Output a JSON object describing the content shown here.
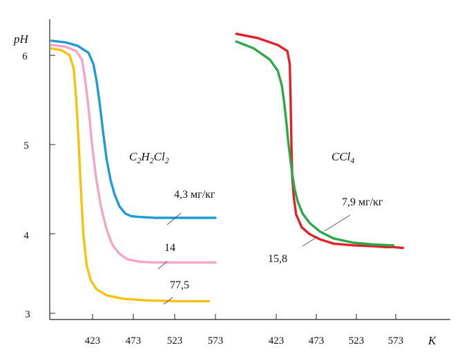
{
  "chart_data": {
    "type": "line",
    "ylabel": "pH",
    "xlabel": "K",
    "ylim": [
      3,
      6.3
    ],
    "y_ticks": [
      "3",
      "4",
      "5",
      "6"
    ],
    "x_ticks": [
      "423",
      "473",
      "523",
      "573"
    ],
    "panels": [
      {
        "title_parts": [
          {
            "t": "C",
            "sub": false
          },
          {
            "t": "2",
            "sub": true
          },
          {
            "t": "H",
            "sub": false
          },
          {
            "t": "2",
            "sub": true
          },
          {
            "t": "Cl",
            "sub": false
          },
          {
            "t": "2",
            "sub": true
          }
        ],
        "xlim": [
          373,
          573
        ],
        "series": [
          {
            "name": "4,3 мг/кг",
            "color": "#1e9bd7",
            "x": [
              373,
              390,
              405,
              418,
              424,
              428,
              432,
              436,
              440,
              445,
              450,
              456,
              463,
              470,
              480,
              500,
              530,
              573
            ],
            "y": [
              6.17,
              6.15,
              6.11,
              6.03,
              5.9,
              5.7,
              5.42,
              5.1,
              4.8,
              4.55,
              4.38,
              4.24,
              4.16,
              4.13,
              4.12,
              4.11,
              4.11,
              4.11
            ]
          },
          {
            "name": "14",
            "color": "#f5a3c7",
            "x": [
              373,
              390,
              403,
              410,
              414,
              418,
              422,
              427,
              433,
              440,
              447,
              455,
              465,
              480,
              500,
              530,
              573
            ],
            "y": [
              6.12,
              6.1,
              6.05,
              5.95,
              5.72,
              5.4,
              5.0,
              4.6,
              4.25,
              3.98,
              3.8,
              3.7,
              3.63,
              3.6,
              3.59,
              3.59,
              3.59
            ]
          },
          {
            "name": "77,5",
            "color": "#f5c210",
            "x": [
              373,
              385,
              395,
              400,
              403,
              406,
              409,
              412,
              416,
              421,
              428,
              440,
              460,
              490,
              530,
              565
            ],
            "y": [
              6.08,
              6.06,
              6.0,
              5.85,
              5.5,
              5.0,
              4.4,
              3.9,
              3.55,
              3.38,
              3.28,
              3.21,
              3.17,
              3.15,
              3.14,
              3.14
            ]
          }
        ],
        "annotations": [
          "4,3 мг/кг",
          "14",
          "77,5"
        ]
      },
      {
        "title_parts": [
          {
            "t": "CCl",
            "sub": false
          },
          {
            "t": "4",
            "sub": true
          }
        ],
        "xlim": [
          373,
          573
        ],
        "series": [
          {
            "name": "15,8",
            "color": "#e0202a",
            "x": [
              373,
              400,
              425,
              437,
              440,
              441,
              442,
              443,
              445,
              448,
              455,
              465,
              478,
              495,
              520,
              545,
              560,
              570,
              582
            ],
            "y": [
              6.25,
              6.2,
              6.12,
              6.05,
              5.9,
              5.5,
              5.0,
              4.6,
              4.35,
              4.15,
              4.0,
              3.92,
              3.86,
              3.81,
              3.79,
              3.78,
              3.77,
              3.77,
              3.76
            ]
          },
          {
            "name": "7,9 мг/кг",
            "color": "#2aa84a",
            "x": [
              373,
              395,
              415,
              425,
              430,
              433,
              436,
              438,
              440,
              443,
              446,
              450,
              456,
              465,
              478,
              495,
              520,
              545,
              570
            ],
            "y": [
              6.16,
              6.08,
              5.95,
              5.82,
              5.65,
              5.45,
              5.2,
              5.0,
              4.85,
              4.62,
              4.45,
              4.3,
              4.16,
              4.05,
              3.95,
              3.87,
              3.82,
              3.8,
              3.79
            ]
          }
        ],
        "annotations": [
          "7,9 мг/кг",
          "15,8"
        ]
      }
    ]
  }
}
